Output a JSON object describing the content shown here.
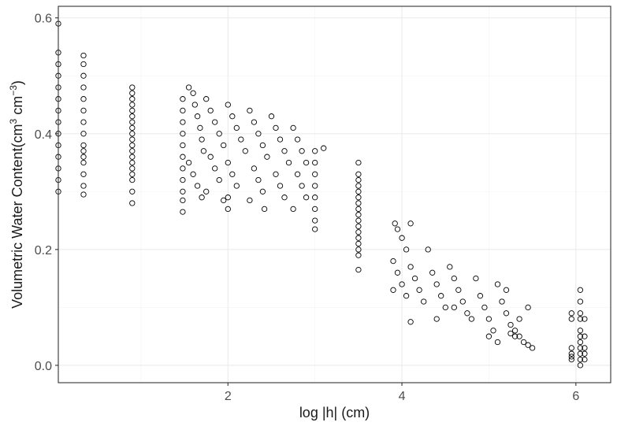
{
  "chart_data": {
    "type": "scatter",
    "title": "",
    "xlabel": "log |h| (cm)",
    "ylabel": {
      "prefix": "Volumetric Water Content(cm",
      "sup1": "3",
      "mid": " cm",
      "sup2": "−3",
      "suffix": ")"
    },
    "xlim": [
      0.05,
      6.4
    ],
    "ylim": [
      -0.03,
      0.62
    ],
    "x_ticks": [
      {
        "value": 2,
        "label": "2"
      },
      {
        "value": 4,
        "label": "4"
      },
      {
        "value": 6,
        "label": "6"
      }
    ],
    "y_ticks": [
      {
        "value": 0.0,
        "label": "0.0"
      },
      {
        "value": 0.2,
        "label": "0.2"
      },
      {
        "value": 0.4,
        "label": "0.4"
      },
      {
        "value": 0.6,
        "label": "0.6"
      }
    ],
    "grid": true,
    "marker": "open-circle",
    "marker_color": "#000000",
    "points": [
      [
        0.05,
        0.59
      ],
      [
        0.05,
        0.54
      ],
      [
        0.05,
        0.52
      ],
      [
        0.05,
        0.5
      ],
      [
        0.05,
        0.48
      ],
      [
        0.05,
        0.46
      ],
      [
        0.05,
        0.44
      ],
      [
        0.05,
        0.42
      ],
      [
        0.05,
        0.4
      ],
      [
        0.05,
        0.38
      ],
      [
        0.05,
        0.36
      ],
      [
        0.05,
        0.34
      ],
      [
        0.05,
        0.32
      ],
      [
        0.05,
        0.3
      ],
      [
        0.34,
        0.535
      ],
      [
        0.34,
        0.52
      ],
      [
        0.34,
        0.5
      ],
      [
        0.34,
        0.48
      ],
      [
        0.34,
        0.46
      ],
      [
        0.34,
        0.44
      ],
      [
        0.34,
        0.42
      ],
      [
        0.34,
        0.4
      ],
      [
        0.34,
        0.38
      ],
      [
        0.34,
        0.37
      ],
      [
        0.34,
        0.36
      ],
      [
        0.34,
        0.35
      ],
      [
        0.34,
        0.33
      ],
      [
        0.34,
        0.31
      ],
      [
        0.34,
        0.295
      ],
      [
        0.9,
        0.48
      ],
      [
        0.9,
        0.47
      ],
      [
        0.9,
        0.46
      ],
      [
        0.9,
        0.45
      ],
      [
        0.9,
        0.44
      ],
      [
        0.9,
        0.43
      ],
      [
        0.9,
        0.42
      ],
      [
        0.9,
        0.41
      ],
      [
        0.9,
        0.4
      ],
      [
        0.9,
        0.39
      ],
      [
        0.9,
        0.38
      ],
      [
        0.9,
        0.37
      ],
      [
        0.9,
        0.36
      ],
      [
        0.9,
        0.35
      ],
      [
        0.9,
        0.34
      ],
      [
        0.9,
        0.33
      ],
      [
        0.9,
        0.32
      ],
      [
        0.9,
        0.3
      ],
      [
        0.9,
        0.28
      ],
      [
        1.48,
        0.46
      ],
      [
        1.48,
        0.44
      ],
      [
        1.48,
        0.42
      ],
      [
        1.48,
        0.4
      ],
      [
        1.48,
        0.38
      ],
      [
        1.48,
        0.36
      ],
      [
        1.48,
        0.34
      ],
      [
        1.48,
        0.32
      ],
      [
        1.48,
        0.3
      ],
      [
        1.48,
        0.285
      ],
      [
        1.48,
        0.265
      ],
      [
        1.55,
        0.48
      ],
      [
        1.6,
        0.47
      ],
      [
        1.62,
        0.45
      ],
      [
        1.65,
        0.43
      ],
      [
        1.68,
        0.41
      ],
      [
        1.7,
        0.39
      ],
      [
        1.72,
        0.37
      ],
      [
        1.55,
        0.35
      ],
      [
        1.6,
        0.33
      ],
      [
        1.65,
        0.31
      ],
      [
        1.7,
        0.29
      ],
      [
        1.75,
        0.46
      ],
      [
        1.8,
        0.44
      ],
      [
        1.85,
        0.42
      ],
      [
        1.9,
        0.4
      ],
      [
        1.95,
        0.38
      ],
      [
        1.8,
        0.36
      ],
      [
        1.85,
        0.34
      ],
      [
        1.9,
        0.32
      ],
      [
        1.75,
        0.3
      ],
      [
        1.95,
        0.285
      ],
      [
        2.0,
        0.45
      ],
      [
        2.05,
        0.43
      ],
      [
        2.1,
        0.41
      ],
      [
        2.15,
        0.39
      ],
      [
        2.2,
        0.37
      ],
      [
        2.0,
        0.35
      ],
      [
        2.05,
        0.33
      ],
      [
        2.1,
        0.31
      ],
      [
        2.0,
        0.29
      ],
      [
        2.0,
        0.27
      ],
      [
        2.25,
        0.44
      ],
      [
        2.3,
        0.42
      ],
      [
        2.35,
        0.4
      ],
      [
        2.4,
        0.38
      ],
      [
        2.45,
        0.36
      ],
      [
        2.3,
        0.34
      ],
      [
        2.35,
        0.32
      ],
      [
        2.4,
        0.3
      ],
      [
        2.25,
        0.285
      ],
      [
        2.5,
        0.43
      ],
      [
        2.55,
        0.41
      ],
      [
        2.6,
        0.39
      ],
      [
        2.65,
        0.37
      ],
      [
        2.7,
        0.35
      ],
      [
        2.55,
        0.33
      ],
      [
        2.6,
        0.31
      ],
      [
        2.65,
        0.29
      ],
      [
        2.42,
        0.27
      ],
      [
        2.75,
        0.41
      ],
      [
        2.8,
        0.39
      ],
      [
        2.85,
        0.37
      ],
      [
        2.9,
        0.35
      ],
      [
        2.8,
        0.33
      ],
      [
        2.85,
        0.31
      ],
      [
        2.9,
        0.29
      ],
      [
        2.75,
        0.27
      ],
      [
        3.0,
        0.37
      ],
      [
        3.0,
        0.35
      ],
      [
        3.0,
        0.33
      ],
      [
        3.0,
        0.31
      ],
      [
        3.0,
        0.29
      ],
      [
        3.0,
        0.27
      ],
      [
        3.0,
        0.25
      ],
      [
        3.0,
        0.235
      ],
      [
        3.1,
        0.375
      ],
      [
        3.5,
        0.35
      ],
      [
        3.5,
        0.33
      ],
      [
        3.5,
        0.32
      ],
      [
        3.5,
        0.31
      ],
      [
        3.5,
        0.3
      ],
      [
        3.5,
        0.29
      ],
      [
        3.5,
        0.28
      ],
      [
        3.5,
        0.27
      ],
      [
        3.5,
        0.26
      ],
      [
        3.5,
        0.25
      ],
      [
        3.5,
        0.24
      ],
      [
        3.5,
        0.23
      ],
      [
        3.5,
        0.22
      ],
      [
        3.5,
        0.21
      ],
      [
        3.5,
        0.2
      ],
      [
        3.5,
        0.19
      ],
      [
        3.5,
        0.165
      ],
      [
        3.92,
        0.245
      ],
      [
        3.95,
        0.235
      ],
      [
        4.0,
        0.22
      ],
      [
        4.05,
        0.2
      ],
      [
        4.1,
        0.245
      ],
      [
        3.9,
        0.18
      ],
      [
        3.95,
        0.16
      ],
      [
        4.0,
        0.14
      ],
      [
        4.05,
        0.12
      ],
      [
        3.9,
        0.13
      ],
      [
        4.1,
        0.17
      ],
      [
        4.15,
        0.15
      ],
      [
        4.2,
        0.13
      ],
      [
        4.25,
        0.11
      ],
      [
        4.1,
        0.075
      ],
      [
        4.3,
        0.2
      ],
      [
        4.35,
        0.16
      ],
      [
        4.4,
        0.14
      ],
      [
        4.45,
        0.12
      ],
      [
        4.5,
        0.1
      ],
      [
        4.55,
        0.17
      ],
      [
        4.6,
        0.15
      ],
      [
        4.65,
        0.13
      ],
      [
        4.7,
        0.11
      ],
      [
        4.75,
        0.09
      ],
      [
        4.4,
        0.08
      ],
      [
        4.6,
        0.1
      ],
      [
        4.8,
        0.08
      ],
      [
        4.85,
        0.15
      ],
      [
        4.9,
        0.12
      ],
      [
        4.95,
        0.1
      ],
      [
        5.0,
        0.08
      ],
      [
        5.05,
        0.06
      ],
      [
        5.1,
        0.14
      ],
      [
        5.15,
        0.11
      ],
      [
        5.2,
        0.09
      ],
      [
        5.25,
        0.07
      ],
      [
        5.3,
        0.05
      ],
      [
        5.0,
        0.05
      ],
      [
        5.1,
        0.04
      ],
      [
        5.2,
        0.13
      ],
      [
        5.3,
        0.06
      ],
      [
        5.35,
        0.05
      ],
      [
        5.4,
        0.04
      ],
      [
        5.45,
        0.035
      ],
      [
        5.5,
        0.03
      ],
      [
        5.45,
        0.1
      ],
      [
        5.35,
        0.08
      ],
      [
        5.25,
        0.055
      ],
      [
        5.95,
        0.09
      ],
      [
        5.95,
        0.08
      ],
      [
        5.95,
        0.03
      ],
      [
        5.95,
        0.02
      ],
      [
        5.95,
        0.015
      ],
      [
        5.95,
        0.01
      ],
      [
        6.05,
        0.13
      ],
      [
        6.05,
        0.11
      ],
      [
        6.05,
        0.09
      ],
      [
        6.05,
        0.08
      ],
      [
        6.05,
        0.06
      ],
      [
        6.05,
        0.05
      ],
      [
        6.05,
        0.04
      ],
      [
        6.05,
        0.03
      ],
      [
        6.05,
        0.02
      ],
      [
        6.05,
        0.01
      ],
      [
        6.05,
        0.0
      ],
      [
        6.1,
        0.08
      ],
      [
        6.1,
        0.05
      ],
      [
        6.1,
        0.03
      ],
      [
        6.1,
        0.02
      ],
      [
        6.1,
        0.01
      ]
    ]
  }
}
